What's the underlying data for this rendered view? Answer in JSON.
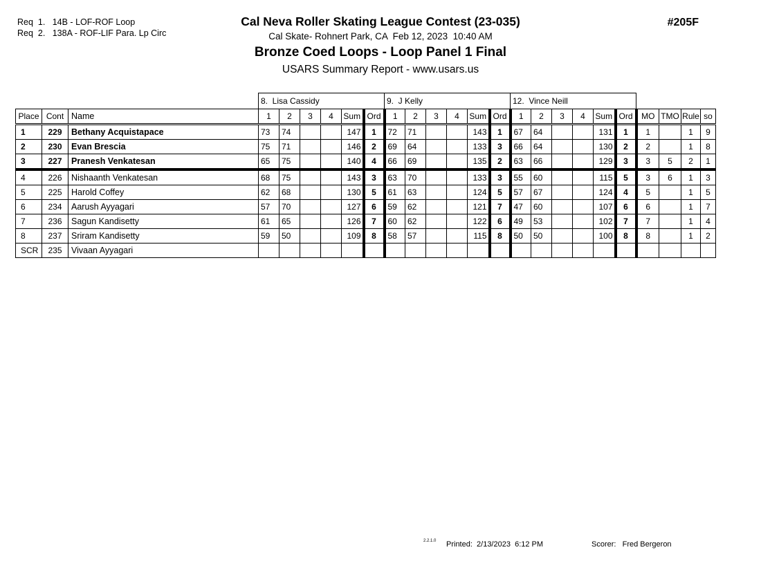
{
  "header": {
    "req1": "Req  1.   14B - LOF-ROF Loop",
    "req2": "Req  2.   138A - ROF-LIF Para. Lp Circ",
    "title": "Cal Neva Roller Skating League Contest (23-035)",
    "venue": "Cal Skate- Rohnert Park, CA  Feb 12, 2023  10:40 AM",
    "event": "Bronze Coed Loops - Loop Panel 1 Final",
    "report": "USARS Summary Report - www.usars.us",
    "number": "#205F"
  },
  "table": {
    "judges": [
      "8.  Lisa Cassidy",
      "9.  J Kelly",
      "12.  Vince Neill"
    ],
    "left_headers": [
      "Place",
      "Cont",
      "Name"
    ],
    "score_headers": [
      "1",
      "2",
      "3",
      "4",
      "Sum",
      "Ord"
    ],
    "right_headers": [
      "MO",
      "TMO",
      "Rule",
      "so"
    ],
    "rows": [
      {
        "place": "1",
        "cont": "229",
        "name": "Bethany Acquistapace",
        "medal": true,
        "judges": [
          [
            "73",
            "74",
            "",
            "",
            "147",
            "1"
          ],
          [
            "72",
            "71",
            "",
            "",
            "143",
            "1"
          ],
          [
            "67",
            "64",
            "",
            "",
            "131",
            "1"
          ]
        ],
        "mo": "1",
        "tmo": "",
        "rule": "1",
        "so": "9"
      },
      {
        "place": "2",
        "cont": "230",
        "name": "Evan Brescia",
        "medal": true,
        "judges": [
          [
            "75",
            "71",
            "",
            "",
            "146",
            "2"
          ],
          [
            "69",
            "64",
            "",
            "",
            "133",
            "3"
          ],
          [
            "66",
            "64",
            "",
            "",
            "130",
            "2"
          ]
        ],
        "mo": "2",
        "tmo": "",
        "rule": "1",
        "so": "8"
      },
      {
        "place": "3",
        "cont": "227",
        "name": "Pranesh Venkatesan",
        "medal": true,
        "judges": [
          [
            "65",
            "75",
            "",
            "",
            "140",
            "4"
          ],
          [
            "66",
            "69",
            "",
            "",
            "135",
            "2"
          ],
          [
            "63",
            "66",
            "",
            "",
            "129",
            "3"
          ]
        ],
        "mo": "3",
        "tmo": "5",
        "rule": "2",
        "so": "1"
      },
      {
        "place": "4",
        "cont": "226",
        "name": "Nishaanth Venkatesan",
        "medal": false,
        "judges": [
          [
            "68",
            "75",
            "",
            "",
            "143",
            "3"
          ],
          [
            "63",
            "70",
            "",
            "",
            "133",
            "3"
          ],
          [
            "55",
            "60",
            "",
            "",
            "115",
            "5"
          ]
        ],
        "mo": "3",
        "tmo": "6",
        "rule": "1",
        "so": "3"
      },
      {
        "place": "5",
        "cont": "225",
        "name": "Harold Coffey",
        "medal": false,
        "judges": [
          [
            "62",
            "68",
            "",
            "",
            "130",
            "5"
          ],
          [
            "61",
            "63",
            "",
            "",
            "124",
            "5"
          ],
          [
            "57",
            "67",
            "",
            "",
            "124",
            "4"
          ]
        ],
        "mo": "5",
        "tmo": "",
        "rule": "1",
        "so": "5"
      },
      {
        "place": "6",
        "cont": "234",
        "name": "Aarush Ayyagari",
        "medal": false,
        "judges": [
          [
            "57",
            "70",
            "",
            "",
            "127",
            "6"
          ],
          [
            "59",
            "62",
            "",
            "",
            "121",
            "7"
          ],
          [
            "47",
            "60",
            "",
            "",
            "107",
            "6"
          ]
        ],
        "mo": "6",
        "tmo": "",
        "rule": "1",
        "so": "7"
      },
      {
        "place": "7",
        "cont": "236",
        "name": "Sagun Kandisetty",
        "medal": false,
        "judges": [
          [
            "61",
            "65",
            "",
            "",
            "126",
            "7"
          ],
          [
            "60",
            "62",
            "",
            "",
            "122",
            "6"
          ],
          [
            "49",
            "53",
            "",
            "",
            "102",
            "7"
          ]
        ],
        "mo": "7",
        "tmo": "",
        "rule": "1",
        "so": "4"
      },
      {
        "place": "8",
        "cont": "237",
        "name": "Sriram Kandisetty",
        "medal": false,
        "judges": [
          [
            "59",
            "50",
            "",
            "",
            "109",
            "8"
          ],
          [
            "58",
            "57",
            "",
            "",
            "115",
            "8"
          ],
          [
            "50",
            "50",
            "",
            "",
            "100",
            "8"
          ]
        ],
        "mo": "8",
        "tmo": "",
        "rule": "1",
        "so": "2"
      },
      {
        "place": "SCR",
        "cont": "235",
        "name": "Vivaan Ayyagari",
        "medal": false,
        "judges": [
          [
            "",
            "",
            "",
            "",
            "",
            ""
          ],
          [
            "",
            "",
            "",
            "",
            "",
            ""
          ],
          [
            "",
            "",
            "",
            "",
            "",
            ""
          ]
        ],
        "mo": "",
        "tmo": "",
        "rule": "",
        "so": ""
      }
    ]
  },
  "footer": {
    "version": "2.2.1.0",
    "printed": "Printed:  2/13/2023  6:12 PM",
    "scorer": "Scorer:   Fred Bergeron"
  }
}
